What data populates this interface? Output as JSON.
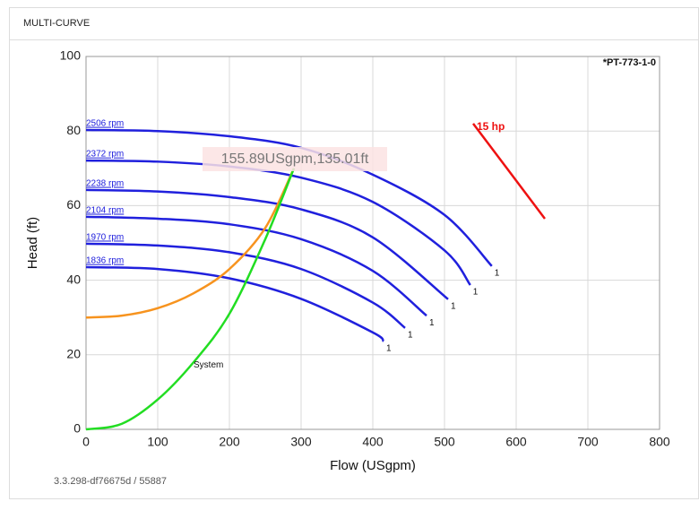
{
  "panel_title": "MULTI-CURVE",
  "footer": "3.3.298-df76675d / 55887",
  "chart_data": {
    "type": "line",
    "model": "*PT-773-1-0",
    "x_label": "Flow (USgpm)",
    "y_label": "Head (ft)",
    "annotation": "155.89USgpm,135.01ft",
    "xlim": [
      0,
      800
    ],
    "xticks": [
      0,
      100,
      200,
      300,
      400,
      500,
      600,
      700,
      800
    ],
    "ylim": [
      0,
      100
    ],
    "yticks": [
      0,
      20,
      40,
      60,
      80,
      100
    ],
    "grid": true,
    "series": [
      {
        "name": "2506 rpm",
        "color": "#2020dd",
        "end_label": "1",
        "x": [
          0,
          100,
          200,
          300,
          400,
          500,
          566
        ],
        "values": [
          80.3,
          80.0,
          78.6,
          75.5,
          68.3,
          57.5,
          43.8
        ]
      },
      {
        "name": "2372 rpm",
        "color": "#2020dd",
        "end_label": "1",
        "x": [
          0,
          100,
          200,
          300,
          400,
          500,
          536
        ],
        "values": [
          72.1,
          71.8,
          70.5,
          67.5,
          61.0,
          48.0,
          38.7
        ]
      },
      {
        "name": "2238 rpm",
        "color": "#2020dd",
        "end_label": "1",
        "x": [
          0,
          100,
          200,
          300,
          400,
          505
        ],
        "values": [
          64.2,
          63.8,
          62.3,
          59.0,
          51.5,
          34.9
        ]
      },
      {
        "name": "2104 rpm",
        "color": "#2020dd",
        "end_label": "1",
        "x": [
          0,
          100,
          200,
          300,
          400,
          475
        ],
        "values": [
          57.0,
          56.5,
          55.0,
          51.0,
          42.5,
          30.5
        ]
      },
      {
        "name": "1970 rpm",
        "color": "#2020dd",
        "end_label": "1",
        "x": [
          0,
          100,
          200,
          300,
          400,
          445
        ],
        "values": [
          49.8,
          49.3,
          47.5,
          43.0,
          34.0,
          27.2
        ]
      },
      {
        "name": "1836 rpm",
        "color": "#2020dd",
        "end_label": "1",
        "x": [
          0,
          100,
          200,
          300,
          400,
          415
        ],
        "values": [
          43.5,
          43.0,
          40.5,
          35.0,
          26.0,
          23.6
        ]
      },
      {
        "color": "#f7931e",
        "x": [
          0,
          50,
          100,
          150,
          200,
          250,
          290
        ],
        "values": [
          30,
          30.5,
          32.5,
          36.5,
          43,
          54,
          70
        ]
      },
      {
        "name": "System",
        "color": "#22dd22",
        "x": [
          0,
          50,
          100,
          150,
          200,
          250,
          290
        ],
        "values": [
          0,
          1.5,
          8,
          18,
          31,
          51,
          70
        ]
      },
      {
        "name": "15 hp",
        "color": "#ee1111",
        "x": [
          540,
          640
        ],
        "values": [
          82,
          56.5
        ]
      }
    ]
  }
}
